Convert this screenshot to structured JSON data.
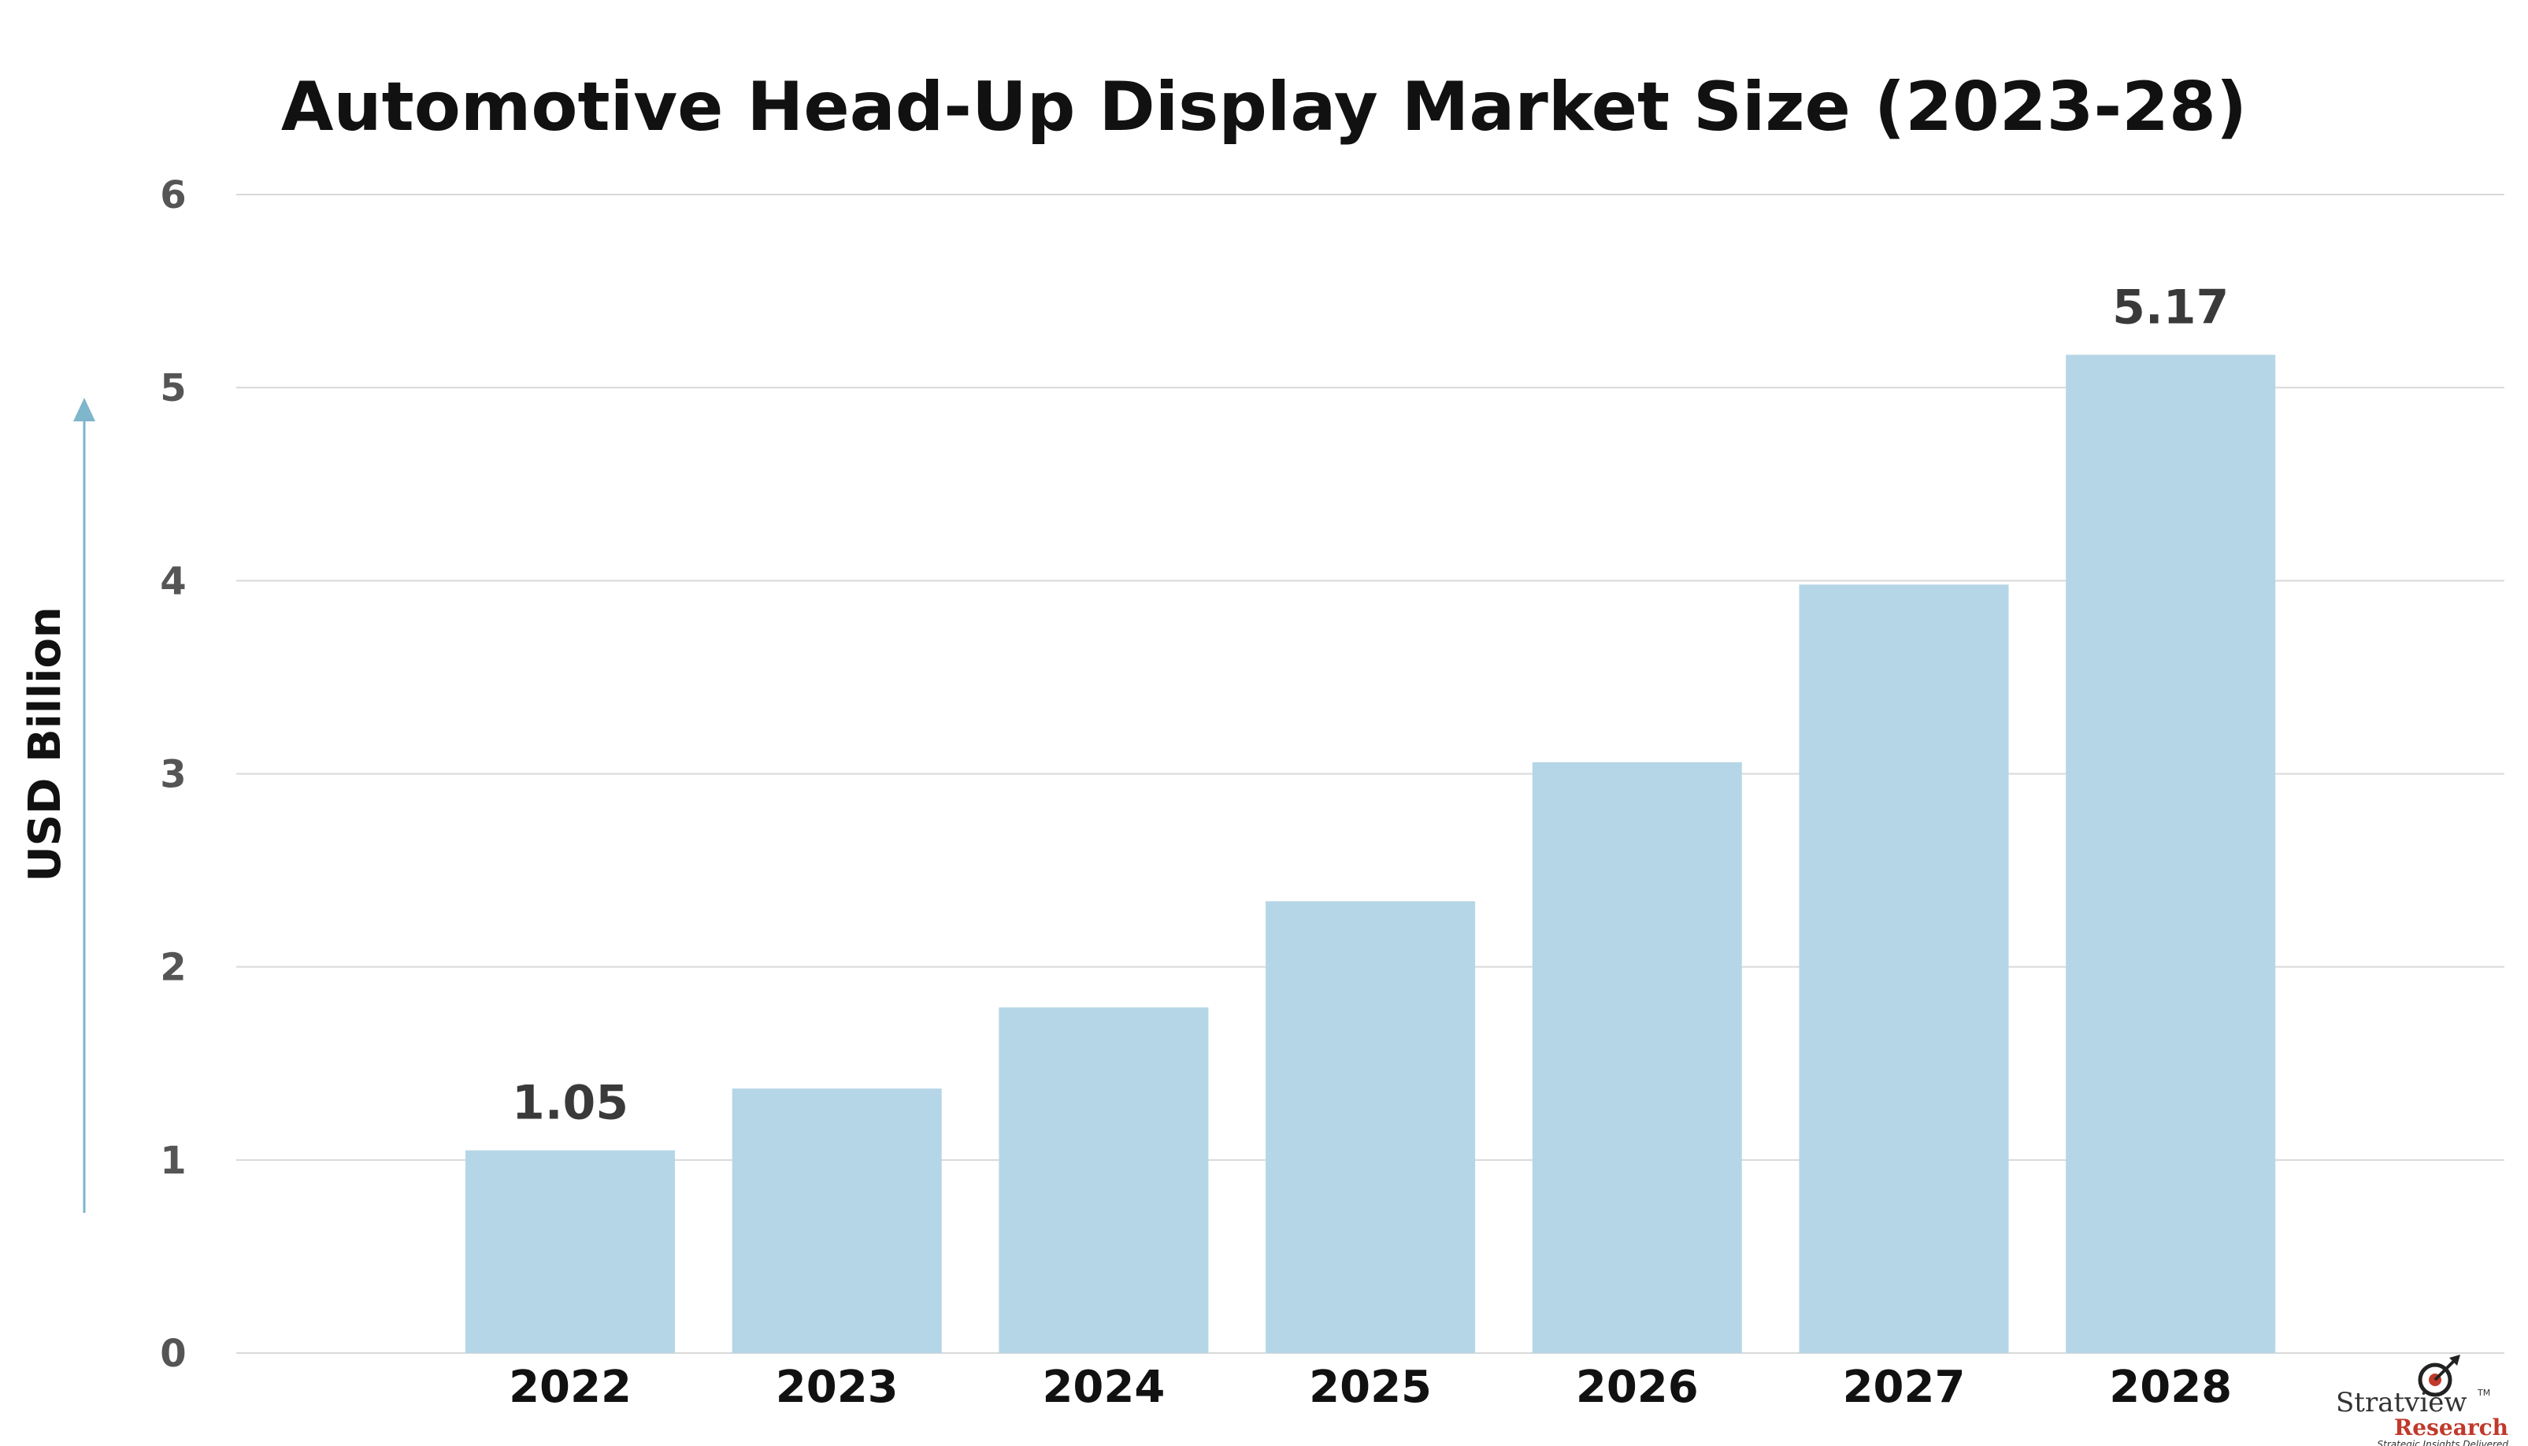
{
  "chart_data": {
    "type": "bar",
    "title": "Automotive Head-Up Display Market Size (2023-28)",
    "ylabel": "USD Billion",
    "xlabel": "",
    "categories": [
      "2022",
      "2023",
      "2024",
      "2025",
      "2026",
      "2027",
      "2028"
    ],
    "values": [
      1.05,
      1.37,
      1.79,
      2.34,
      3.06,
      3.98,
      5.17
    ],
    "data_labels": {
      "2022": "1.05",
      "2028": "5.17"
    },
    "ylim": [
      0,
      6
    ],
    "yticks": [
      "0",
      "1",
      "2",
      "3",
      "4",
      "5",
      "6"
    ],
    "grid": true,
    "legend": "none",
    "colors": {
      "bar": "#b5d6e6",
      "grid": "#d9d9d9",
      "arrow": "#7fb6cc"
    }
  },
  "logo": {
    "name": "Stratview",
    "trademark": "TM",
    "sub": "Research",
    "tagline": "Strategic Insights Delivered"
  }
}
